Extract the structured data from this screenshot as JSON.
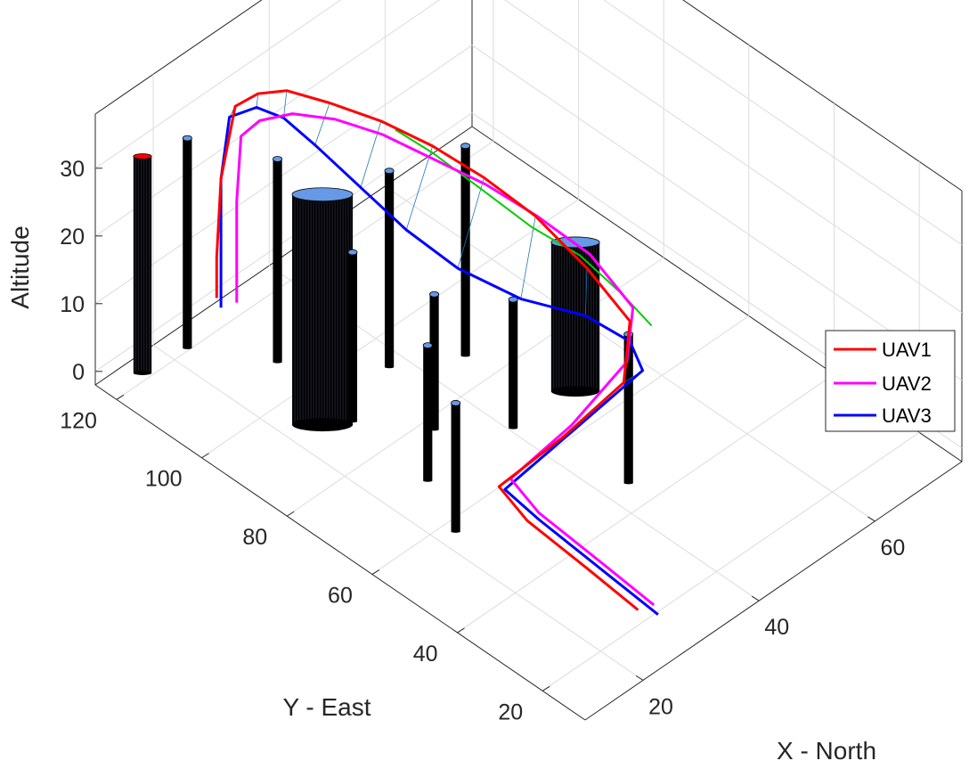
{
  "chart_data": {
    "type": "line",
    "projection": "3d",
    "xlabel": "X - North",
    "ylabel": "Y - East",
    "zlabel": "Altitude",
    "x_ticks": [
      "20",
      "40",
      "60"
    ],
    "y_ticks": [
      "20",
      "40",
      "60",
      "80",
      "100",
      "120"
    ],
    "z_ticks": [
      "0",
      "10",
      "20",
      "30"
    ],
    "xlim": [
      10,
      75
    ],
    "ylim": [
      10,
      125
    ],
    "zlim": [
      -2,
      38
    ],
    "grid": true,
    "box": true,
    "legend_position": "right",
    "colors": {
      "UAV1": "#ff0000",
      "UAV2": "#ff00ff",
      "UAV3": "#0000ff",
      "reference": "#00cc00",
      "links": "#1f77b4",
      "obstacle": "#000000",
      "obstacle_cap": "#6699e6"
    },
    "series": [
      {
        "name": "UAV1",
        "points": [
          [
            25,
            18,
            2
          ],
          [
            25,
            30,
            3
          ],
          [
            25,
            44,
            4
          ],
          [
            26,
            52,
            5
          ],
          [
            38,
            53,
            5
          ],
          [
            49,
            54,
            6
          ],
          [
            53,
            58,
            11
          ],
          [
            50,
            64,
            18
          ],
          [
            47,
            72,
            24
          ],
          [
            44,
            80,
            28
          ],
          [
            41,
            88,
            31
          ],
          [
            38,
            96,
            33
          ],
          [
            35,
            104,
            34
          ],
          [
            32,
            110,
            35
          ],
          [
            30,
            114,
            34
          ],
          [
            29,
            118,
            31
          ],
          [
            28,
            120,
            20
          ],
          [
            28,
            121,
            8
          ],
          [
            28,
            121,
            2
          ]
        ]
      },
      {
        "name": "UAV2",
        "points": [
          [
            27,
            17,
            2
          ],
          [
            27,
            30,
            3
          ],
          [
            27,
            44,
            4
          ],
          [
            28,
            52,
            5
          ],
          [
            40,
            54,
            5
          ],
          [
            51,
            56,
            7
          ],
          [
            55,
            60,
            11
          ],
          [
            52,
            66,
            18
          ],
          [
            48,
            73,
            23
          ],
          [
            45,
            81,
            26
          ],
          [
            42,
            89,
            28
          ],
          [
            39,
            97,
            30
          ],
          [
            36,
            104,
            31
          ],
          [
            33,
            110,
            31
          ],
          [
            31,
            115,
            29
          ],
          [
            30,
            118,
            26
          ],
          [
            30,
            119,
            16
          ],
          [
            30,
            119,
            6
          ],
          [
            30,
            119,
            1
          ]
        ]
      },
      {
        "name": "UAV3",
        "points": [
          [
            27,
            16,
            1
          ],
          [
            27,
            30,
            2
          ],
          [
            27,
            44,
            3
          ],
          [
            27,
            52,
            4
          ],
          [
            40,
            54,
            4
          ],
          [
            53,
            55,
            5
          ],
          [
            53,
            58,
            8
          ],
          [
            49,
            63,
            12
          ],
          [
            43,
            70,
            15
          ],
          [
            38,
            78,
            19
          ],
          [
            35,
            86,
            23
          ],
          [
            33,
            94,
            27
          ],
          [
            31,
            102,
            31
          ],
          [
            30,
            108,
            33
          ],
          [
            29,
            113,
            33
          ],
          [
            28,
            118,
            30
          ],
          [
            28,
            120,
            20
          ],
          [
            28,
            120,
            8
          ],
          [
            28,
            120,
            1
          ]
        ]
      },
      {
        "name": "",
        "points": [
          [
            56,
            57,
            9
          ],
          [
            54,
            61,
            13
          ],
          [
            51,
            67,
            18
          ],
          [
            47,
            73,
            22
          ],
          [
            44,
            80,
            26
          ],
          [
            41,
            88,
            30
          ],
          [
            39,
            94,
            32
          ]
        ]
      }
    ],
    "obstacles": [
      {
        "x": 22,
        "y": 88,
        "r": 4,
        "z_top": 35,
        "cap_color": "#6699e6"
      },
      {
        "x": 48,
        "y": 64,
        "r": 3.2,
        "z_top": 23,
        "cap_color": "#6699e6"
      },
      {
        "x": 13,
        "y": 118,
        "r": 1.2,
        "z_top": 33,
        "cap_color": "#ff0000"
      },
      {
        "x": 26,
        "y": 104,
        "r": 0.6,
        "z_top": 31,
        "cap_color": "#6699e6"
      },
      {
        "x": 20,
        "y": 117,
        "r": 0.6,
        "z_top": 32,
        "cap_color": "#6699e6"
      },
      {
        "x": 35,
        "y": 90,
        "r": 0.6,
        "z_top": 30,
        "cap_color": "#6699e6"
      },
      {
        "x": 43,
        "y": 83,
        "r": 0.6,
        "z_top": 32,
        "cap_color": "#6699e6"
      },
      {
        "x": 31,
        "y": 74,
        "r": 0.6,
        "z_top": 21,
        "cap_color": "#6699e6"
      },
      {
        "x": 24,
        "y": 66,
        "r": 0.6,
        "z_top": 21,
        "cap_color": "#6699e6"
      },
      {
        "x": 20,
        "y": 54,
        "r": 0.6,
        "z_top": 20,
        "cap_color": "#6699e6"
      },
      {
        "x": 38,
        "y": 65,
        "r": 0.6,
        "z_top": 20,
        "cap_color": "#6699e6"
      },
      {
        "x": 41,
        "y": 42,
        "r": 0.6,
        "z_top": 23,
        "cap_color": "#6699e6"
      },
      {
        "x": 25,
        "y": 85,
        "r": 0.6,
        "z_top": 26,
        "cap_color": "#6699e6"
      }
    ]
  }
}
